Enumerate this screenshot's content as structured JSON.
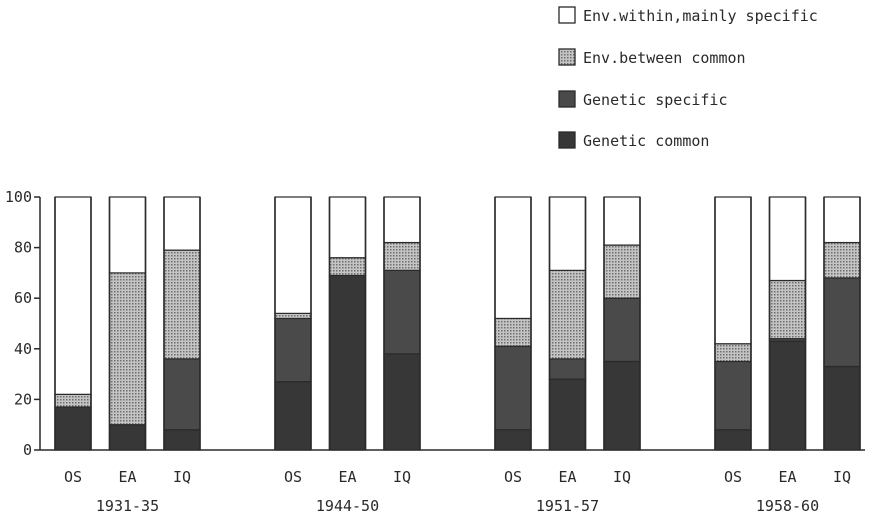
{
  "chart_data": {
    "type": "bar",
    "stacked": true,
    "title": "",
    "xlabel": "",
    "ylabel": "",
    "ylim": [
      0,
      100
    ],
    "yticks": [
      "0",
      "20",
      "40",
      "60",
      "80",
      "100"
    ],
    "grid": false,
    "legend_position": "top-right",
    "series": [
      {
        "name": "Env.within,mainly specific",
        "color": "#ffffff"
      },
      {
        "name": "Env.between common",
        "color": "#a9a9a9"
      },
      {
        "name": "Genetic specific",
        "color": "#4a4a4a"
      },
      {
        "name": "Genetic common",
        "color": "#3a3a3a"
      }
    ],
    "groups": [
      {
        "label": "1931-35",
        "bars": [
          {
            "label": "OS",
            "genetic_common": 17,
            "genetic_specific": 0,
            "env_between": 5,
            "env_within": 78
          },
          {
            "label": "EA",
            "genetic_common": 10,
            "genetic_specific": 0,
            "env_between": 60,
            "env_within": 30
          },
          {
            "label": "IQ",
            "genetic_common": 8,
            "genetic_specific": 28,
            "env_between": 43,
            "env_within": 21
          }
        ]
      },
      {
        "label": "1944-50",
        "bars": [
          {
            "label": "OS",
            "genetic_common": 27,
            "genetic_specific": 25,
            "env_between": 2,
            "env_within": 46
          },
          {
            "label": "EA",
            "genetic_common": 69,
            "genetic_specific": 0,
            "env_between": 7,
            "env_within": 24
          },
          {
            "label": "IQ",
            "genetic_common": 38,
            "genetic_specific": 33,
            "env_between": 11,
            "env_within": 18
          }
        ]
      },
      {
        "label": "1951-57",
        "bars": [
          {
            "label": "OS",
            "genetic_common": 8,
            "genetic_specific": 33,
            "env_between": 11,
            "env_within": 48
          },
          {
            "label": "EA",
            "genetic_common": 28,
            "genetic_specific": 8,
            "env_between": 35,
            "env_within": 29
          },
          {
            "label": "IQ",
            "genetic_common": 35,
            "genetic_specific": 25,
            "env_between": 21,
            "env_within": 19
          }
        ]
      },
      {
        "label": "1958-60",
        "bars": [
          {
            "label": "OS",
            "genetic_common": 8,
            "genetic_specific": 27,
            "env_between": 7,
            "env_within": 58
          },
          {
            "label": "EA",
            "genetic_common": 43,
            "genetic_specific": 1,
            "env_between": 23,
            "env_within": 33
          },
          {
            "label": "IQ",
            "genetic_common": 33,
            "genetic_specific": 35,
            "env_between": 14,
            "env_within": 18
          }
        ]
      }
    ]
  }
}
